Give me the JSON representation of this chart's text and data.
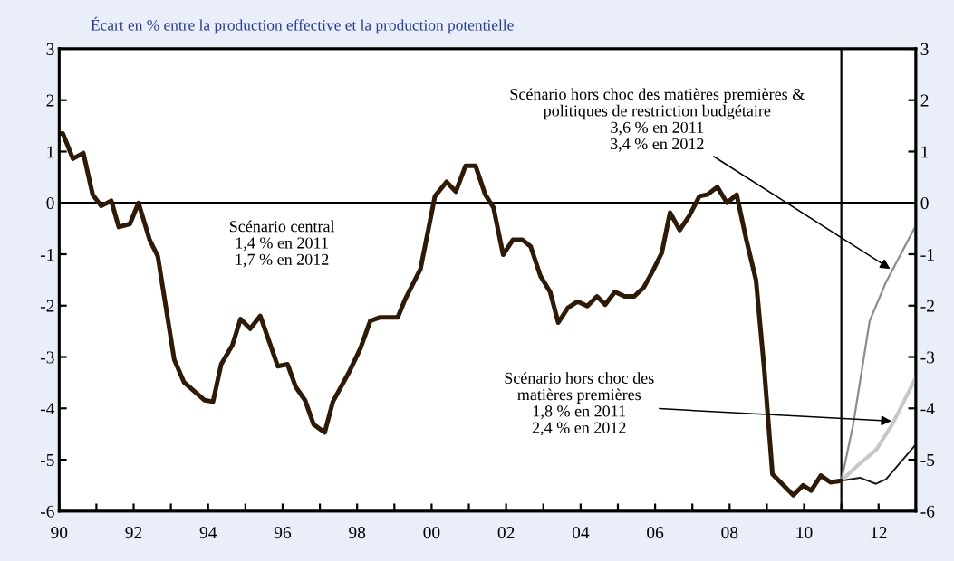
{
  "chart_data": {
    "type": "line",
    "title": "Écart en % entre la production effective et la production potentielle",
    "series": [
      {
        "color": "#2e1a06",
        "x": [
          1990,
          1990.1,
          1990.37,
          1990.65,
          1990.9,
          1991.13,
          1991.4,
          1991.6,
          1991.9,
          1992.13,
          1992.43,
          1992.65,
          1993.09,
          1993.35,
          1993.9,
          1994.13,
          1994.35,
          1994.65,
          1994.87,
          1995.13,
          1995.4,
          1995.87,
          1996.13,
          1996.35,
          1996.6,
          1996.83,
          1997.13,
          1997.35,
          1997.78,
          1998.09,
          1998.35,
          1998.6,
          1999.09,
          1999.3,
          1999.7,
          2000.09,
          2000.4,
          2000.65,
          2000.91,
          2001.18,
          2001.44,
          2001.66,
          2001.92,
          2002.18,
          2002.44,
          2002.66,
          2002.92,
          2003.18,
          2003.4,
          2003.66,
          2003.92,
          2004.18,
          2004.44,
          2004.66,
          2004.92,
          2005.18,
          2005.44,
          2005.7,
          2005.92,
          2006.18,
          2006.4,
          2006.66,
          2006.92,
          2007.19,
          2007.4,
          2007.67,
          2007.93,
          2008.19,
          2008.45,
          2008.71,
          2008.93,
          2009.15,
          2009.41,
          2009.71,
          2009.97,
          2010.19,
          2010.45,
          2010.71,
          2011
        ],
        "values": [
          1.35,
          1.35,
          0.86,
          0.97,
          0.16,
          -0.06,
          0.04,
          -0.47,
          -0.41,
          0,
          -0.72,
          -1.04,
          -3.05,
          -3.49,
          -3.84,
          -3.87,
          -3.14,
          -2.77,
          -2.26,
          -2.45,
          -2.2,
          -3.18,
          -3.14,
          -3.58,
          -3.84,
          -4.31,
          -4.47,
          -3.87,
          -3.3,
          -2.83,
          -2.3,
          -2.23,
          -2.23,
          -1.86,
          -1.29,
          0.13,
          0.41,
          0.22,
          0.72,
          0.72,
          0.16,
          -0.09,
          -1.01,
          -0.72,
          -0.72,
          -0.85,
          -1.42,
          -1.73,
          -2.33,
          -2.04,
          -1.92,
          -2.01,
          -1.82,
          -1.98,
          -1.73,
          -1.82,
          -1.82,
          -1.64,
          -1.35,
          -0.97,
          -0.19,
          -0.53,
          -0.25,
          0.13,
          0.16,
          0.31,
          0,
          0.16,
          -0.72,
          -1.51,
          -3.24,
          -5.28,
          -5.47,
          -5.69,
          -5.5,
          -5.6,
          -5.31,
          -5.44,
          -5.41
        ]
      },
      {
        "color": "#1a1a1a",
        "x": [
          2011,
          2011.5,
          2011.93,
          2012.2,
          2012.98
        ],
        "values": [
          -5.41,
          -5.35,
          -5.47,
          -5.38,
          -4.72
        ]
      },
      {
        "color": "#c8c8c8",
        "x": [
          2011,
          2011.41,
          2011.93,
          2012.37,
          2012.98
        ],
        "values": [
          -5.41,
          -5.13,
          -4.81,
          -4.31,
          -3.43
        ]
      },
      {
        "color": "#8c8c8c",
        "x": [
          2011,
          2011.32,
          2011.76,
          2012.2,
          2012.98
        ],
        "values": [
          -5.41,
          -4.31,
          -2.3,
          -1.54,
          -0.47
        ]
      }
    ],
    "xlim": [
      1990,
      2013
    ],
    "xticks": [
      {
        "value": 1990,
        "label": "90"
      },
      {
        "value": 1991,
        "label": null
      },
      {
        "value": 1992,
        "label": "92"
      },
      {
        "value": 1993,
        "label": null
      },
      {
        "value": 1994,
        "label": "94"
      },
      {
        "value": 1995,
        "label": null
      },
      {
        "value": 1996,
        "label": "96"
      },
      {
        "value": 1997,
        "label": null
      },
      {
        "value": 1998,
        "label": "98"
      },
      {
        "value": 1999,
        "label": null
      },
      {
        "value": 2000,
        "label": "00"
      },
      {
        "value": 2001,
        "label": null
      },
      {
        "value": 2002,
        "label": "02"
      },
      {
        "value": 2003,
        "label": null
      },
      {
        "value": 2004,
        "label": "04"
      },
      {
        "value": 2005,
        "label": null
      },
      {
        "value": 2006,
        "label": "06"
      },
      {
        "value": 2007,
        "label": null
      },
      {
        "value": 2008,
        "label": "08"
      },
      {
        "value": 2009,
        "label": null
      },
      {
        "value": 2010,
        "label": "10"
      },
      {
        "value": 2011,
        "label": null
      },
      {
        "value": 2012,
        "label": "12"
      }
    ],
    "ylim": [
      -6,
      3
    ],
    "yticks": [
      -6,
      -5,
      -4,
      -3,
      -2,
      -1,
      0,
      1,
      2,
      3
    ],
    "y2lim": [
      -6,
      3
    ],
    "y2ticks": [
      -6,
      -5,
      -4,
      -3,
      -2,
      -1,
      0,
      1,
      2,
      3
    ],
    "ref_lines": [
      {
        "axis": "y",
        "value": 0,
        "color": "#000000"
      },
      {
        "axis": "x",
        "value": 2011,
        "color": "#000000"
      }
    ],
    "annotations": [
      "Scénario central\n1,4 % en 2011\n1,7 % en 2012",
      {
        "text": "Scénario hors choc des matières premières &\npolitiques de restriction budgétaire\n3,6 % en 2011\n3,4 % en 2012",
        "x": 2012.37,
        "y": -1.31
      },
      {
        "text": "Scénario hors choc des\nmatières premières\n1,8 % en 2011\n2,4 % en 2012",
        "x": 2012.41,
        "y": -4.25
      }
    ],
    "grid": false,
    "legend": false,
    "line_style": "solid",
    "marker": "none"
  }
}
